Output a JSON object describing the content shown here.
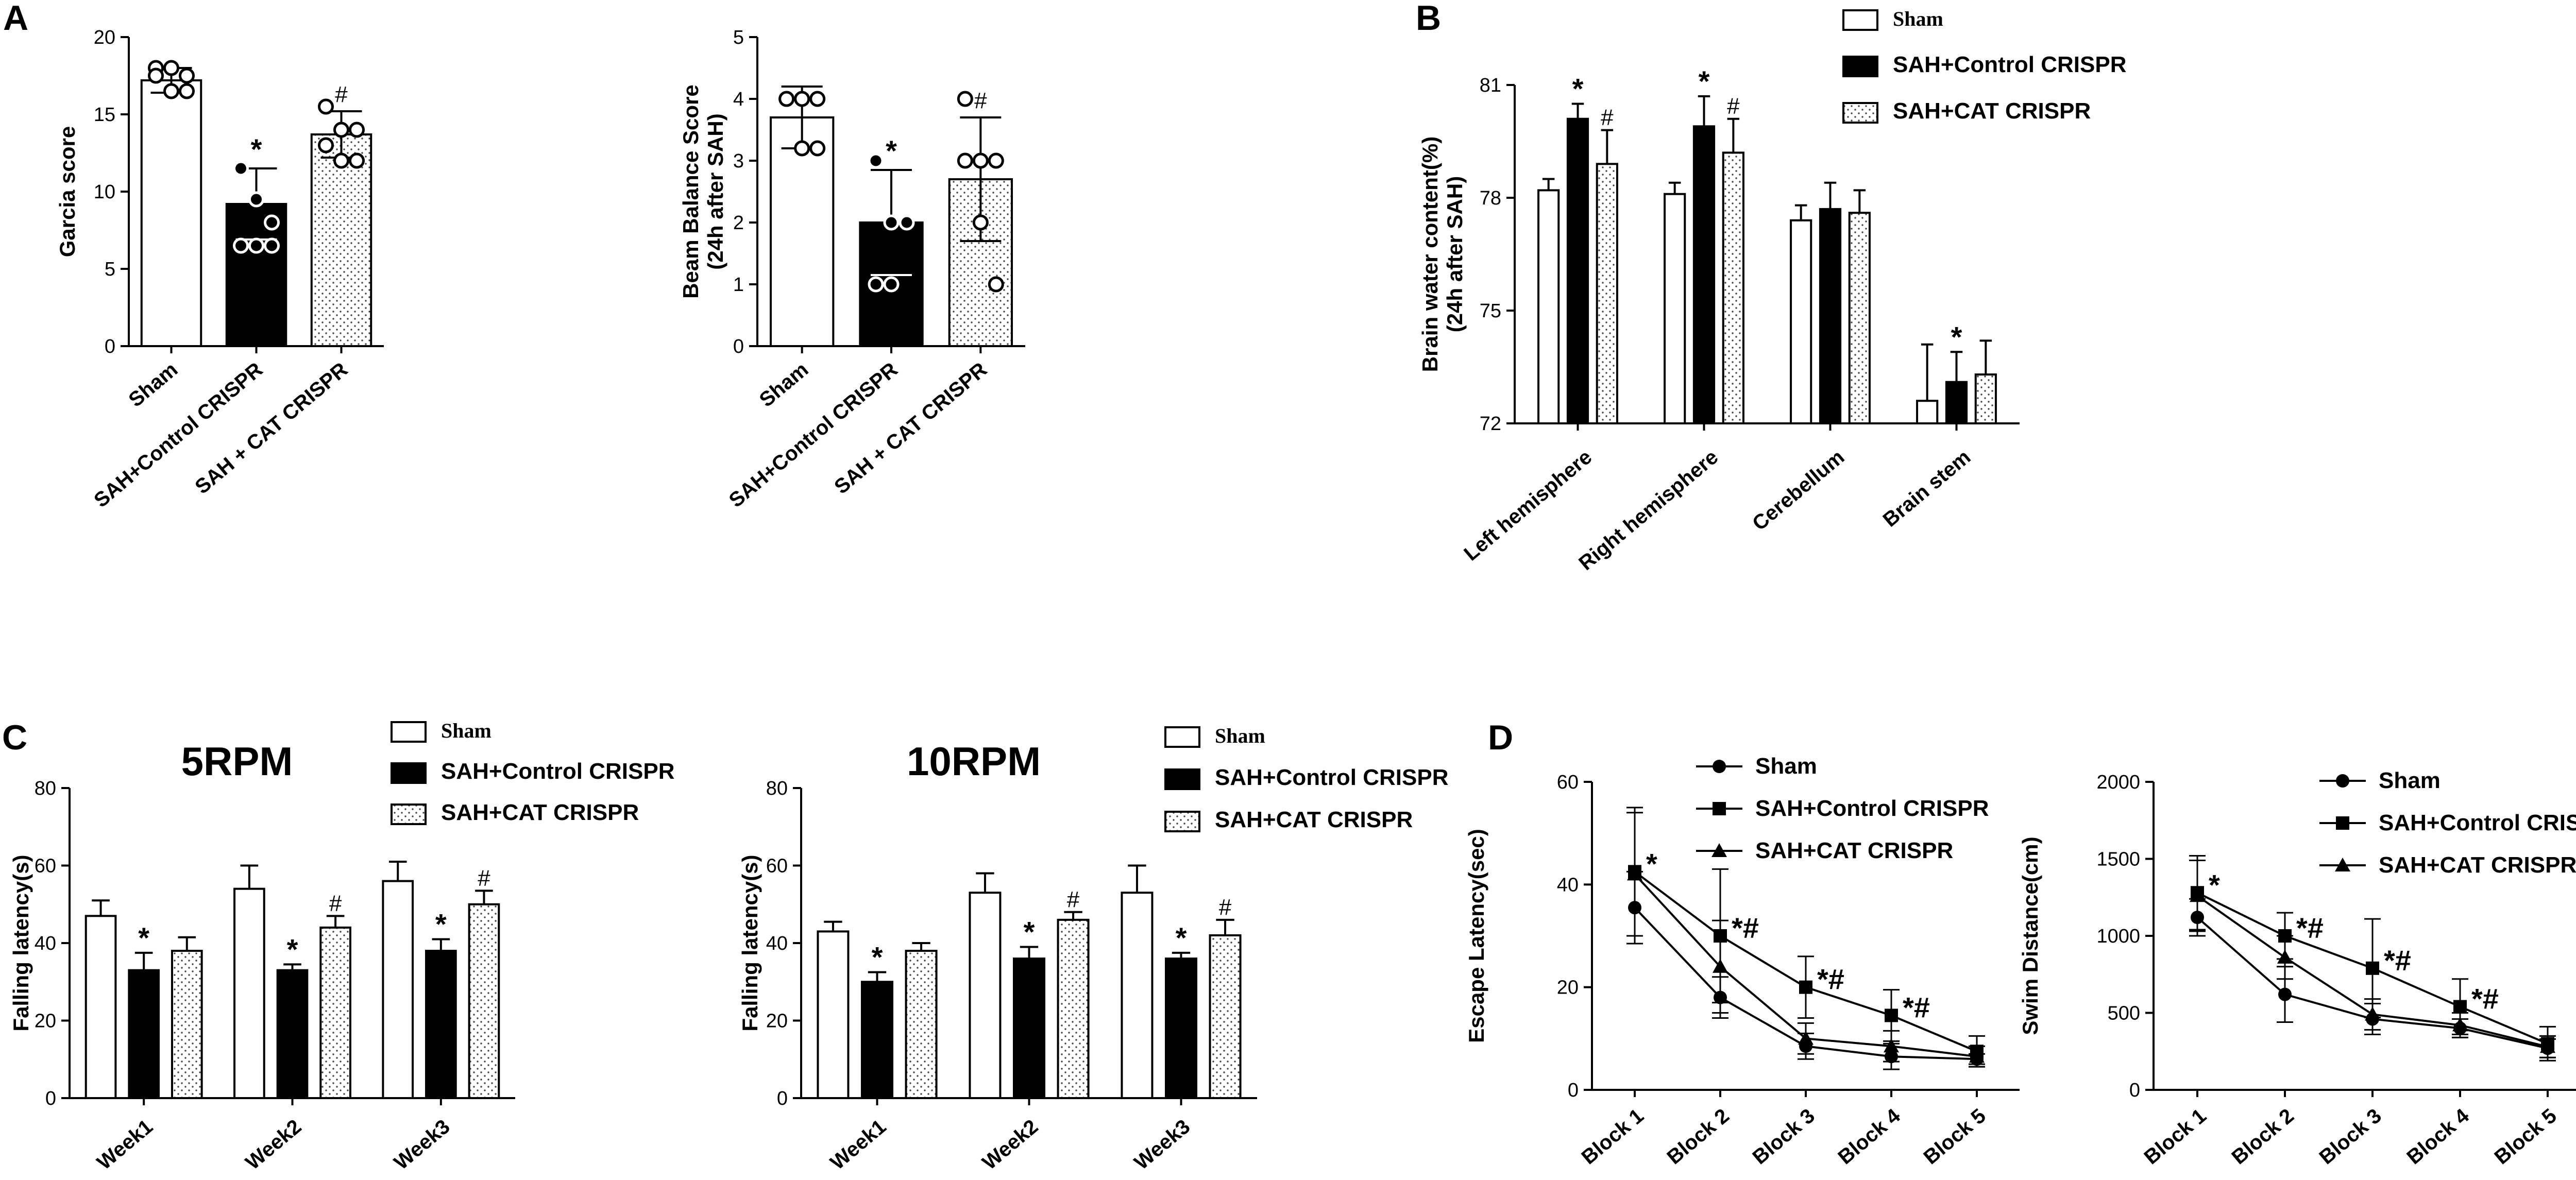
{
  "panel_labels": [
    "A",
    "B",
    "C",
    "D"
  ],
  "legend": {
    "sham": "Sham",
    "control": "SAH+Control CRISPR",
    "cat": "SAH+CAT CRISPR"
  },
  "chart_data": [
    {
      "id": "A1",
      "type": "bar",
      "title": "",
      "ylabel": "Garcia score",
      "categories": [
        "Sham",
        "SAH+Control CRISPR",
        "SAH + CAT CRISPR"
      ],
      "values": [
        17.2,
        9.2,
        13.7
      ],
      "errors": [
        0.8,
        2.3,
        1.5
      ],
      "points": [
        [
          18,
          18,
          17.5,
          17.5,
          16.5,
          16.5
        ],
        [
          11.5,
          9.5,
          8,
          6.5,
          6.5,
          6.5
        ],
        [
          15.5,
          14,
          14,
          13,
          12,
          12
        ]
      ],
      "annotations": [
        "",
        "*",
        "#"
      ],
      "ylim": [
        0,
        20
      ],
      "yticks": [
        0,
        5,
        10,
        15,
        20
      ]
    },
    {
      "id": "A2",
      "type": "bar",
      "title": "",
      "ylabel": "Beam Balance Score",
      "ylabel2": "(24h after SAH)",
      "categories": [
        "Sham",
        "SAH+Control CRISPR",
        "SAH + CAT CRISPR"
      ],
      "values": [
        3.7,
        2.0,
        2.7
      ],
      "errors": [
        0.5,
        0.85,
        1.0
      ],
      "points": [
        [
          4,
          4,
          4,
          4,
          3.2,
          3.2
        ],
        [
          3,
          2,
          2,
          1,
          1
        ],
        [
          4,
          3,
          3,
          3,
          2,
          1
        ]
      ],
      "annotations": [
        "",
        "*",
        "#"
      ],
      "ylim": [
        0,
        5
      ],
      "yticks": [
        0,
        1,
        2,
        3,
        4,
        5
      ]
    },
    {
      "id": "B",
      "type": "bar",
      "title": "",
      "ylabel": "Brain water content(%)",
      "ylabel2": "(24h after SAH)",
      "categories": [
        "Left hemisphere",
        "Right hemisphere",
        "Cerebellum",
        "Brain stem"
      ],
      "series": [
        {
          "name": "Sham",
          "values": [
            78.2,
            78.1,
            77.4,
            72.6
          ],
          "errors": [
            0.3,
            0.3,
            0.4,
            1.5
          ]
        },
        {
          "name": "SAH+Control CRISPR",
          "values": [
            80.1,
            79.9,
            77.7,
            73.1
          ],
          "errors": [
            0.4,
            0.8,
            0.7,
            0.8
          ]
        },
        {
          "name": "SAH+CAT CRISPR",
          "values": [
            78.9,
            79.2,
            77.6,
            73.3
          ],
          "errors": [
            0.9,
            0.9,
            0.6,
            0.9
          ]
        }
      ],
      "annotations": [
        [
          "",
          "*",
          "#"
        ],
        [
          "",
          "*",
          "#"
        ],
        [
          "",
          "",
          ""
        ],
        [
          "",
          "*",
          ""
        ]
      ],
      "ylim": [
        72,
        81
      ],
      "yticks": [
        72,
        75,
        78,
        81
      ]
    },
    {
      "id": "C1",
      "type": "bar",
      "title": "5RPM",
      "ylabel": "Falling latency(s)",
      "categories": [
        "Week1",
        "Week2",
        "Week3"
      ],
      "series": [
        {
          "name": "Sham",
          "values": [
            47,
            54,
            56
          ],
          "errors": [
            4,
            6,
            5
          ]
        },
        {
          "name": "SAH+Control CRISPR",
          "values": [
            33,
            33,
            38
          ],
          "errors": [
            4.5,
            1.5,
            3
          ]
        },
        {
          "name": "SAH+CAT CRISPR",
          "values": [
            38,
            44,
            50
          ],
          "errors": [
            3.5,
            3,
            3.5
          ]
        }
      ],
      "annotations": [
        [
          "",
          "*",
          ""
        ],
        [
          "",
          "*",
          "#"
        ],
        [
          "",
          "*",
          "#"
        ]
      ],
      "ylim": [
        0,
        80
      ],
      "yticks": [
        0,
        20,
        40,
        60,
        80
      ]
    },
    {
      "id": "C2",
      "type": "bar",
      "title": "10RPM",
      "ylabel": "Falling latency(s)",
      "categories": [
        "Week1",
        "Week2",
        "Week3"
      ],
      "series": [
        {
          "name": "Sham",
          "values": [
            43,
            53,
            53
          ],
          "errors": [
            2.5,
            5,
            7
          ]
        },
        {
          "name": "SAH+Control CRISPR",
          "values": [
            30,
            36,
            36
          ],
          "errors": [
            2.5,
            3,
            1.5
          ]
        },
        {
          "name": "SAH+CAT CRISPR",
          "values": [
            38,
            46,
            42
          ],
          "errors": [
            2,
            2,
            4
          ]
        }
      ],
      "annotations": [
        [
          "",
          "*",
          ""
        ],
        [
          "",
          "*",
          "#"
        ],
        [
          "",
          "*",
          "#"
        ]
      ],
      "ylim": [
        0,
        80
      ],
      "yticks": [
        0,
        20,
        40,
        60,
        80
      ]
    },
    {
      "id": "D1",
      "type": "line",
      "title": "",
      "ylabel": "Escape Latency(sec)",
      "categories": [
        "Block 1",
        "Block 2",
        "Block 3",
        "Block 4",
        "Block 5"
      ],
      "series": [
        {
          "name": "Sham",
          "marker": "circle",
          "values": [
            35.5,
            18,
            8.5,
            6.5,
            6
          ],
          "errors": [
            7,
            4,
            2.5,
            2.5,
            1
          ]
        },
        {
          "name": "SAH+Control CRISPR",
          "marker": "square",
          "values": [
            42.5,
            30,
            20,
            14.5,
            7.5
          ],
          "errors": [
            12.5,
            13,
            6,
            5,
            3
          ]
        },
        {
          "name": "SAH+CAT CRISPR",
          "marker": "triangle",
          "values": [
            42,
            24,
            10,
            8.5,
            6.5
          ],
          "errors": [
            12,
            9,
            3,
            3,
            2
          ]
        }
      ],
      "annotations": [
        "*",
        "*#",
        "*#",
        "*#",
        ""
      ],
      "ylim": [
        0,
        60
      ],
      "yticks": [
        0,
        20,
        40,
        60
      ]
    },
    {
      "id": "D2",
      "type": "line",
      "title": "",
      "ylabel": "Swim Distance(cm)",
      "categories": [
        "Block 1",
        "Block 2",
        "Block 3",
        "Block 4",
        "Block 5"
      ],
      "series": [
        {
          "name": "Sham",
          "marker": "circle",
          "values": [
            1120,
            620,
            460,
            400,
            270
          ],
          "errors": [
            120,
            180,
            100,
            60,
            60
          ]
        },
        {
          "name": "SAH+Control CRISPR",
          "marker": "square",
          "values": [
            1280,
            1000,
            790,
            540,
            300
          ],
          "errors": [
            240,
            150,
            320,
            180,
            110
          ]
        },
        {
          "name": "SAH+CAT CRISPR",
          "marker": "triangle",
          "values": [
            1260,
            860,
            490,
            420,
            280
          ],
          "errors": [
            230,
            140,
            100,
            80,
            70
          ]
        }
      ],
      "annotations": [
        "*",
        "*#",
        "*#",
        "*#",
        ""
      ],
      "ylim": [
        0,
        2000
      ],
      "yticks": [
        0,
        500,
        1000,
        1500,
        2000
      ]
    }
  ]
}
